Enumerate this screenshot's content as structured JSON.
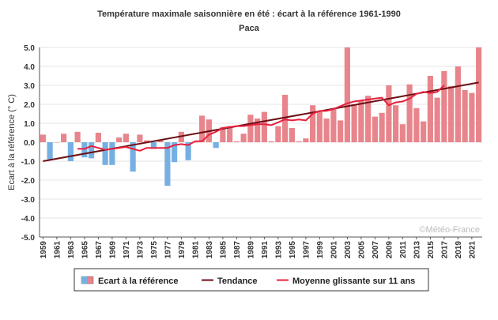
{
  "chart_data": {
    "type": "bar",
    "title": "Température maximale saisonnière en été : écart à la référence 1961-1990",
    "subtitle": "Paca",
    "ylabel": "Ecart à la référence (° C)",
    "xlabel": "",
    "ylim": [
      -5,
      5
    ],
    "yticks": [
      "5.0",
      "4.0",
      "3.0",
      "2.0",
      "1.0",
      "0.0",
      "-1.0",
      "-2.0",
      "-3.0",
      "-4.0",
      "-5.0"
    ],
    "ytick_values": [
      5,
      4,
      3,
      2,
      1,
      0,
      -1,
      -2,
      -3,
      -4,
      -5
    ],
    "x_tick_labels": [
      "1959",
      "1961",
      "1963",
      "1965",
      "1967",
      "1969",
      "1971",
      "1973",
      "1975",
      "1977",
      "1979",
      "1981",
      "1983",
      "1985",
      "1987",
      "1989",
      "1991",
      "1993",
      "1995",
      "1997",
      "1999",
      "2001",
      "2003",
      "2005",
      "2007",
      "2009",
      "2011",
      "2013",
      "2015",
      "2017",
      "2019",
      "2021"
    ],
    "years": [
      1959,
      1960,
      1961,
      1962,
      1963,
      1964,
      1965,
      1966,
      1967,
      1968,
      1969,
      1970,
      1971,
      1972,
      1973,
      1974,
      1975,
      1976,
      1977,
      1978,
      1979,
      1980,
      1981,
      1982,
      1983,
      1984,
      1985,
      1986,
      1987,
      1988,
      1989,
      1990,
      1991,
      1992,
      1993,
      1994,
      1995,
      1996,
      1997,
      1998,
      1999,
      2000,
      2001,
      2002,
      2003,
      2004,
      2005,
      2006,
      2007,
      2008,
      2009,
      2010,
      2011,
      2012,
      2013,
      2014,
      2015,
      2016,
      2017,
      2018,
      2019,
      2020,
      2021,
      2022
    ],
    "values": [
      0.4,
      -0.9,
      0.0,
      0.45,
      -1.0,
      0.55,
      -0.8,
      -0.85,
      0.5,
      -1.2,
      -1.2,
      0.25,
      0.45,
      -1.55,
      0.4,
      0.1,
      -0.35,
      0.1,
      -2.3,
      -1.05,
      0.55,
      -0.95,
      0.0,
      1.4,
      1.2,
      -0.3,
      0.8,
      0.85,
      0.05,
      0.45,
      1.45,
      1.25,
      1.6,
      0.05,
      0.85,
      2.5,
      0.75,
      0.05,
      0.2,
      1.95,
      1.6,
      1.25,
      1.8,
      1.15,
      5.0,
      2.0,
      2.2,
      2.45,
      1.35,
      1.55,
      3.0,
      1.95,
      0.95,
      3.05,
      1.8,
      1.1,
      3.5,
      2.35,
      3.75,
      2.95,
      4.0,
      2.75,
      2.6,
      5.0
    ],
    "trend": {
      "start_year": 1959,
      "start_value": -1.0,
      "end_year": 2022,
      "end_value": 3.15
    },
    "moving_average": {
      "years": [
        1964,
        1965,
        1966,
        1967,
        1968,
        1969,
        1970,
        1971,
        1972,
        1973,
        1974,
        1975,
        1976,
        1977,
        1978,
        1979,
        1980,
        1981,
        1982,
        1983,
        1984,
        1985,
        1986,
        1987,
        1988,
        1989,
        1990,
        1991,
        1992,
        1993,
        1994,
        1995,
        1996,
        1997,
        1998,
        1999,
        2000,
        2001,
        2002,
        2003,
        2004,
        2005,
        2006,
        2007,
        2008,
        2009,
        2010,
        2011,
        2012,
        2013,
        2014,
        2015,
        2016,
        2017
      ],
      "values": [
        -0.35,
        -0.35,
        -0.2,
        -0.3,
        -0.4,
        -0.35,
        -0.3,
        -0.25,
        -0.35,
        -0.45,
        -0.3,
        -0.3,
        -0.3,
        -0.3,
        -0.15,
        -0.1,
        -0.15,
        0.05,
        0.05,
        0.4,
        0.55,
        0.75,
        0.8,
        0.85,
        0.85,
        0.9,
        0.95,
        0.95,
        0.9,
        1.05,
        1.2,
        1.15,
        1.2,
        1.15,
        1.5,
        1.65,
        1.65,
        1.75,
        1.9,
        2.05,
        2.15,
        2.2,
        2.25,
        2.3,
        2.35,
        1.95,
        2.1,
        2.15,
        2.3,
        2.55,
        2.65,
        2.6,
        2.65,
        3.0
      ]
    },
    "grid": true,
    "legend_position": "bottom",
    "legend": [
      "Ecart à la référence",
      "Tendance",
      "Moyenne glissante sur 11 ans"
    ],
    "credit": "©Météo-France",
    "colors": {
      "positive_bar": "#e8858c",
      "negative_bar": "#76b0e3",
      "trend_line": "#6b0f14",
      "moving_average": "#e8203c",
      "grid": "#e5e5e5",
      "axis": "#555555"
    }
  }
}
